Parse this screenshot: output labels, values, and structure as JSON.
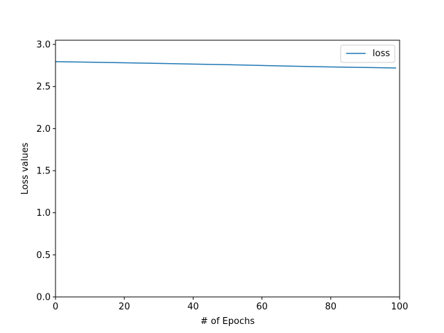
{
  "chart_data": {
    "type": "line",
    "title": "",
    "xlabel": "# of Epochs",
    "ylabel": "Loss values",
    "xlim": [
      0,
      100
    ],
    "ylim": [
      0.0,
      3.05
    ],
    "x_ticks": [
      0,
      20,
      40,
      60,
      80,
      100
    ],
    "y_ticks": [
      0.0,
      0.5,
      1.0,
      1.5,
      2.0,
      2.5,
      3.0
    ],
    "x_tick_labels": [
      "0",
      "20",
      "40",
      "60",
      "80",
      "100"
    ],
    "y_tick_labels": [
      "0.0",
      "0.5",
      "1.0",
      "1.5",
      "2.0",
      "2.5",
      "3.0"
    ],
    "grid": false,
    "legend_position": "top-right",
    "series": [
      {
        "name": "loss",
        "color": "#1f77b4",
        "x": [
          0,
          10,
          20,
          30,
          40,
          50,
          60,
          70,
          80,
          90,
          99
        ],
        "y": [
          2.795,
          2.789,
          2.782,
          2.775,
          2.767,
          2.759,
          2.75,
          2.741,
          2.733,
          2.726,
          2.72
        ]
      }
    ]
  }
}
